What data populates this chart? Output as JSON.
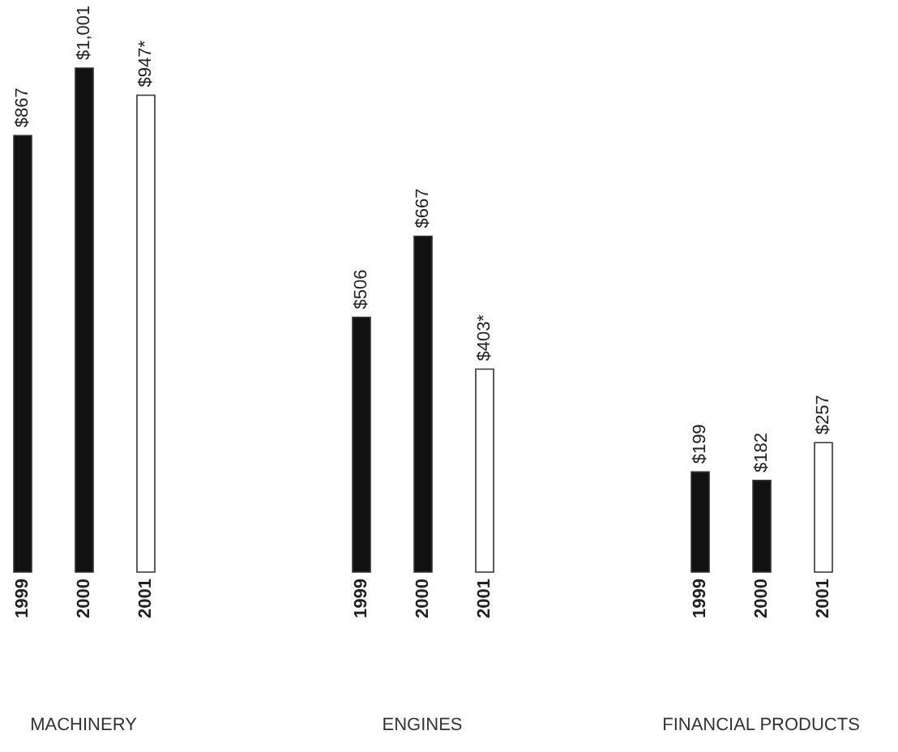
{
  "chart_data": {
    "type": "bar",
    "categories": [
      "MACHINERY",
      "ENGINES",
      "FINANCIAL PRODUCTS"
    ],
    "series": [
      {
        "name": "1999",
        "color": "#111111",
        "values": [
          867,
          506,
          199
        ],
        "value_labels": [
          "$867",
          "$506",
          "$199"
        ]
      },
      {
        "name": "2000",
        "color": "#111111",
        "values": [
          1001,
          667,
          182
        ],
        "value_labels": [
          "$1,001",
          "$667",
          "$182"
        ]
      },
      {
        "name": "2001",
        "color": "#ffffff",
        "values": [
          947,
          403,
          257
        ],
        "value_labels": [
          "$947*",
          "$403*",
          "$257"
        ]
      }
    ],
    "grid": false
  }
}
